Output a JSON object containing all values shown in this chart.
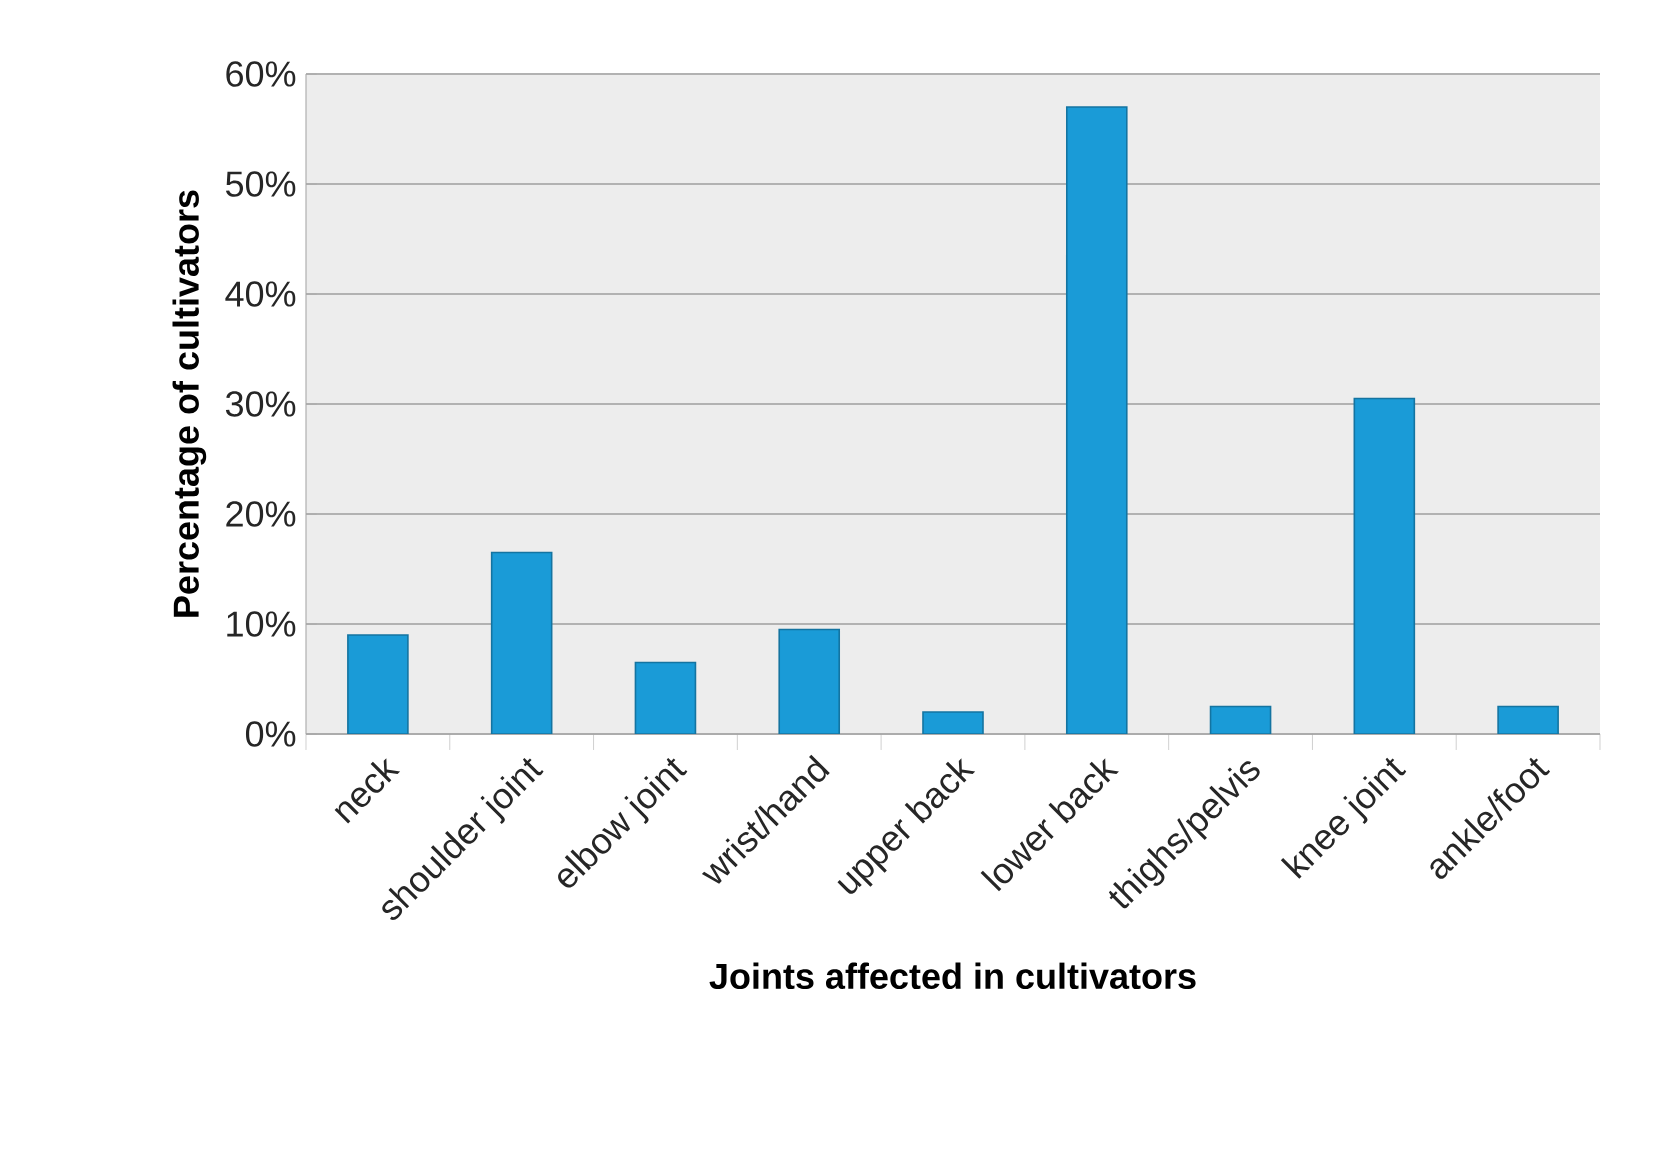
{
  "chart_data": {
    "type": "bar",
    "xlabel": "Joints affected in cultivators",
    "ylabel": "Percentage of cultivators",
    "categories": [
      "neck",
      "shoulder joint",
      "elbow joint",
      "wrist/hand",
      "upper back",
      "lower back",
      "thighs/pelvis",
      "knee joint",
      "ankle/foot"
    ],
    "values": [
      9,
      16.5,
      6.5,
      9.5,
      2,
      57,
      2.5,
      30.5,
      2.5
    ],
    "color": "#1a9bd7",
    "ylim": [
      0,
      60
    ],
    "yticks": [
      {
        "value": 0,
        "label": "0%"
      },
      {
        "value": 10,
        "label": "10%"
      },
      {
        "value": 20,
        "label": "20%"
      },
      {
        "value": 30,
        "label": "30%"
      },
      {
        "value": 40,
        "label": "40%"
      },
      {
        "value": 50,
        "label": "50%"
      },
      {
        "value": 60,
        "label": "60%"
      }
    ],
    "grid": "y"
  }
}
